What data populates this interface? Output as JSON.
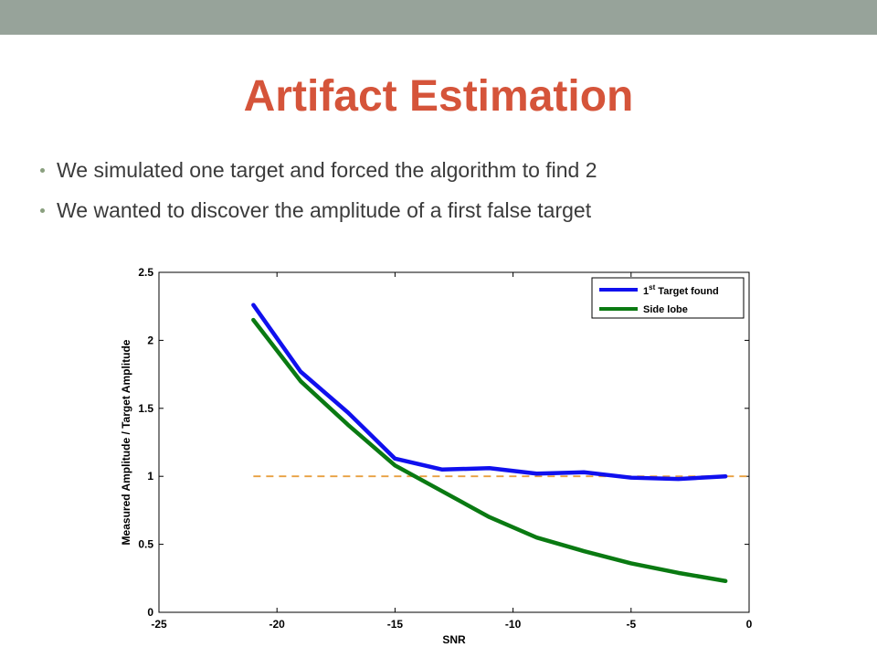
{
  "slide": {
    "title": "Artifact Estimation",
    "bullets": [
      "We simulated one target and forced the algorithm to find 2",
      "We wanted to discover the amplitude of a first false target"
    ],
    "colors": {
      "top_bar": "#97a39a",
      "title": "#d5543a",
      "text": "#3b3b3b",
      "bullet": "#8aa07f"
    }
  },
  "chart_data": {
    "type": "line",
    "title": "",
    "xlabel": "SNR",
    "ylabel": "Measured Amplitude / Target Amplitude",
    "xlim": [
      -25,
      0
    ],
    "ylim": [
      0,
      2.5
    ],
    "xticks": [
      -25,
      -20,
      -15,
      -10,
      -5,
      0
    ],
    "yticks": [
      0,
      0.5,
      1,
      1.5,
      2,
      2.5
    ],
    "xtick_labels": [
      "-25",
      "-20",
      "-15",
      "-10",
      "-5",
      "0"
    ],
    "ytick_labels": [
      "0",
      "0.5",
      "1",
      "1.5",
      "2",
      "2.5"
    ],
    "grid": false,
    "legend_position": "top-right",
    "series": [
      {
        "name_main": "1",
        "name_sup": "st",
        "name_rest": " Target found",
        "color": "#1010ee",
        "x": [
          -21,
          -19,
          -17,
          -15,
          -13,
          -11,
          -9,
          -7,
          -5,
          -3,
          -1
        ],
        "y": [
          2.26,
          1.77,
          1.47,
          1.13,
          1.05,
          1.06,
          1.02,
          1.03,
          0.99,
          0.98,
          1.0
        ]
      },
      {
        "name_main": "Side lobe",
        "name_sup": "",
        "name_rest": "",
        "color": "#0a7a12",
        "x": [
          -21,
          -19,
          -17,
          -15,
          -13,
          -11,
          -9,
          -7,
          -5,
          -3,
          -1
        ],
        "y": [
          2.15,
          1.7,
          1.38,
          1.08,
          0.89,
          0.7,
          0.55,
          0.45,
          0.36,
          0.29,
          0.23
        ]
      }
    ],
    "reference_line": {
      "y": 1,
      "x": [
        -21,
        0
      ],
      "color": "#e8a040",
      "style": "dashed"
    }
  }
}
